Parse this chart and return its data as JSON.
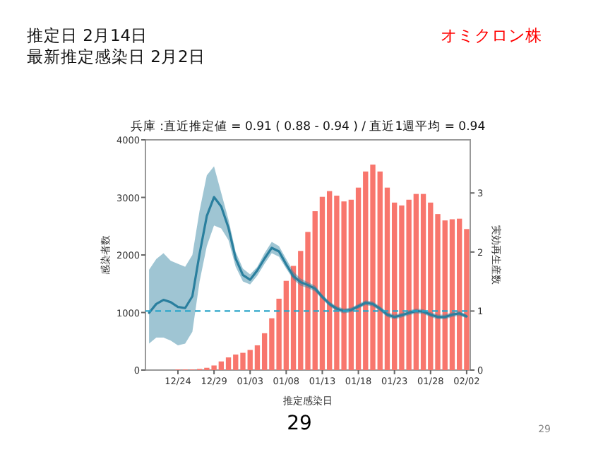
{
  "chart_data": {
    "type": "bar",
    "title": "兵庫 :直近推定値 = 0.91 ( 0.88 - 0.94 ) / 直近1週平均 = 0.94",
    "xlabel": "推定感染日",
    "ylabel": "感染者数",
    "y2label": "実効再生産数",
    "annotations": [
      "推定日  2月14日",
      "最新推定感染日  2月2日",
      "オミクロン株",
      "29",
      "29"
    ],
    "categories": [
      null,
      null,
      null,
      null,
      "12/24",
      null,
      null,
      null,
      null,
      "12/29",
      null,
      null,
      null,
      null,
      "01/03",
      null,
      null,
      null,
      null,
      "01/08",
      null,
      null,
      null,
      null,
      "01/13",
      null,
      null,
      null,
      null,
      "01/18",
      null,
      null,
      null,
      null,
      "01/23",
      null,
      null,
      null,
      null,
      "01/28",
      null,
      null,
      null,
      null,
      "02/02"
    ],
    "series": [
      {
        "color": "#f8766d",
        "values": [
          0,
          0,
          0,
          0,
          10,
          10,
          10,
          20,
          40,
          80,
          150,
          220,
          270,
          300,
          350,
          430,
          640,
          900,
          1240,
          1550,
          1810,
          2070,
          2400,
          2760,
          3010,
          3110,
          3030,
          2930,
          2960,
          3170,
          3450,
          3570,
          3450,
          3170,
          2910,
          2860,
          2960,
          3060,
          3060,
          2910,
          2710,
          2600,
          2620,
          2630,
          2450
        ]
      },
      {
        "type": "line",
        "axis": "y2",
        "color": "#2a7f9e",
        "values": [
          0.97,
          1.12,
          1.19,
          1.15,
          1.07,
          1.05,
          1.25,
          1.97,
          2.61,
          2.93,
          2.77,
          2.41,
          1.89,
          1.61,
          1.53,
          1.69,
          1.89,
          2.07,
          2.01,
          1.79,
          1.59,
          1.49,
          1.44,
          1.38,
          1.24,
          1.12,
          1.04,
          1.0,
          1.02,
          1.08,
          1.14,
          1.12,
          1.04,
          0.94,
          0.9,
          0.93,
          0.97,
          1.0,
          0.99,
          0.94,
          0.9,
          0.9,
          0.94,
          0.96,
          0.91
        ],
        "lower": [
          0.45,
          0.55,
          0.55,
          0.5,
          0.42,
          0.45,
          0.65,
          1.5,
          2.1,
          2.45,
          2.4,
          2.2,
          1.75,
          1.5,
          1.45,
          1.6,
          1.8,
          1.98,
          1.92,
          1.72,
          1.53,
          1.43,
          1.39,
          1.33,
          1.2,
          1.08,
          1.0,
          0.96,
          0.98,
          1.04,
          1.1,
          1.08,
          1.0,
          0.9,
          0.86,
          0.89,
          0.93,
          0.96,
          0.95,
          0.9,
          0.86,
          0.86,
          0.9,
          0.92,
          0.88
        ],
        "upper": [
          1.7,
          1.88,
          1.98,
          1.85,
          1.8,
          1.75,
          1.95,
          2.7,
          3.3,
          3.45,
          3.0,
          2.55,
          2.0,
          1.72,
          1.62,
          1.75,
          1.98,
          2.17,
          2.1,
          1.88,
          1.67,
          1.55,
          1.49,
          1.43,
          1.28,
          1.16,
          1.08,
          1.04,
          1.06,
          1.12,
          1.18,
          1.16,
          1.08,
          0.98,
          0.94,
          0.97,
          1.01,
          1.04,
          1.03,
          0.98,
          0.94,
          0.94,
          0.98,
          1.0,
          0.94
        ]
      }
    ],
    "ylim": [
      0,
      4000
    ],
    "yticks": [
      0,
      1000,
      2000,
      3000,
      4000
    ],
    "y2lim": [
      0,
      3.9
    ],
    "y2ticks": [
      0,
      1,
      2,
      3
    ],
    "ref_lines": [
      {
        "axis": "y2",
        "value": 1,
        "line_style": "dashed",
        "color": "#2aa5c9"
      }
    ]
  }
}
